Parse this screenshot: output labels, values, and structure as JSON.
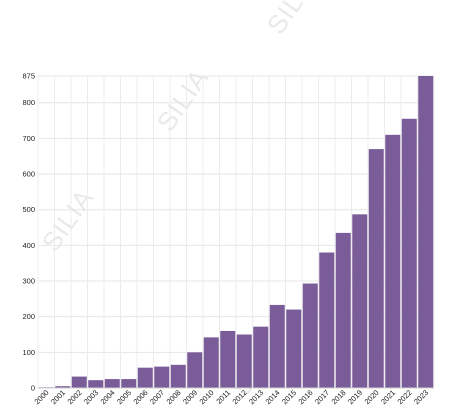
{
  "chart_data": {
    "type": "bar",
    "categories": [
      "2000",
      "2001",
      "2002",
      "2003",
      "2004",
      "2005",
      "2006",
      "2007",
      "2008",
      "2009",
      "2010",
      "2011",
      "2012",
      "2013",
      "2014",
      "2015",
      "2016",
      "2017",
      "2018",
      "2019",
      "2020",
      "2021",
      "2022",
      "2023"
    ],
    "values": [
      2,
      5,
      32,
      22,
      25,
      25,
      57,
      60,
      65,
      100,
      142,
      160,
      150,
      172,
      233,
      220,
      293,
      380,
      435,
      487,
      670,
      710,
      755,
      875
    ],
    "yticks": [
      0,
      100,
      200,
      300,
      400,
      500,
      600,
      700,
      800,
      875
    ],
    "ylim": [
      0,
      875
    ],
    "title": "",
    "xlabel": "",
    "ylabel": "",
    "grid": true,
    "bar_color": "#7a5c99",
    "watermark_text": "SILIA"
  }
}
